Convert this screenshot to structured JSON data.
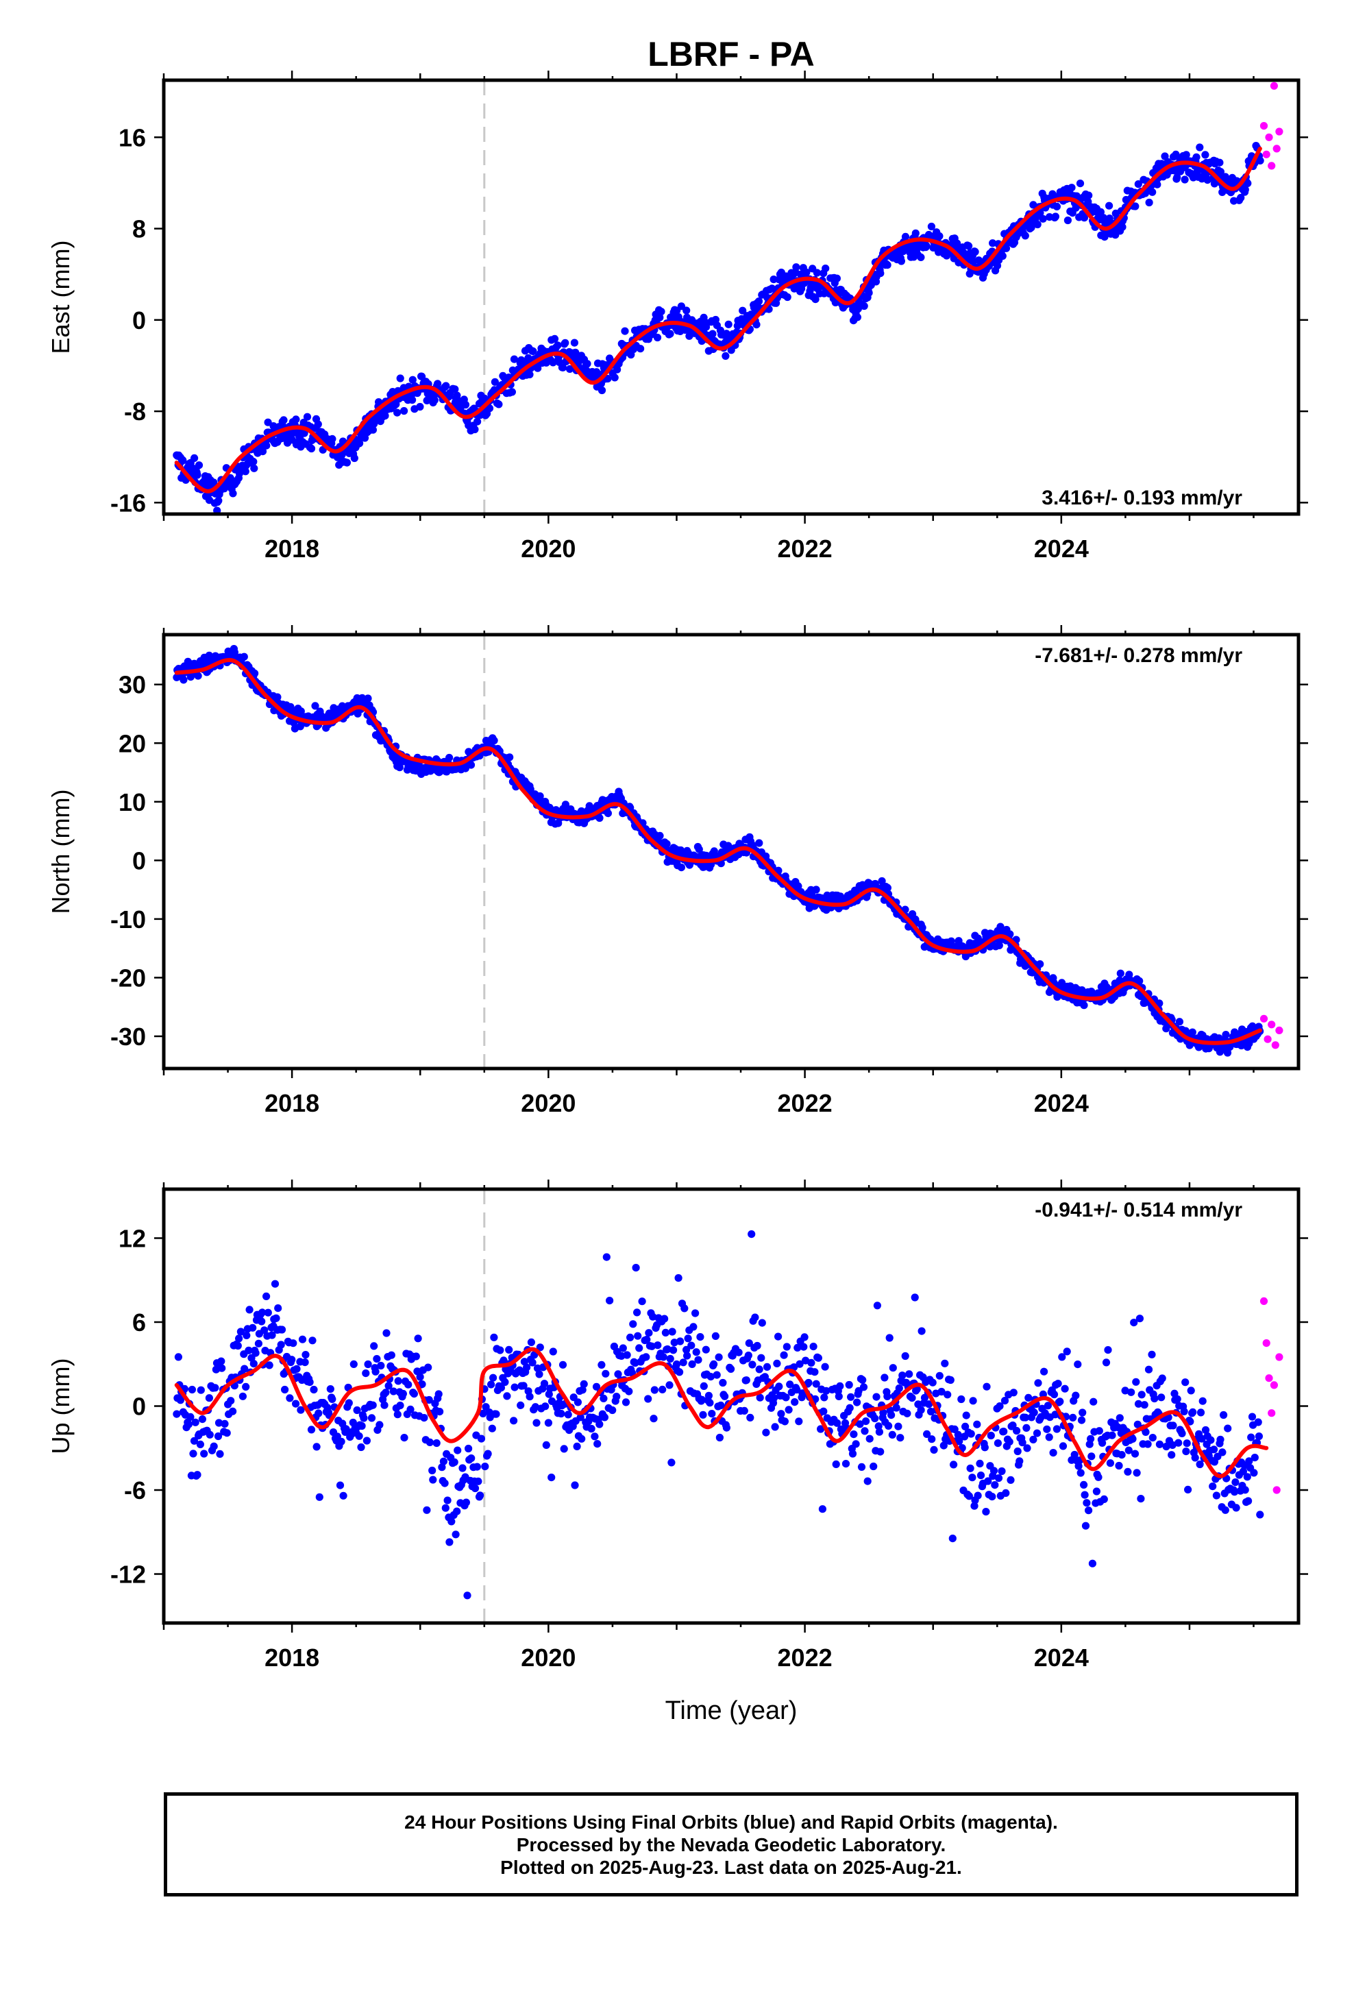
{
  "title": "LBRF - PA",
  "xlabel": "Time (year)",
  "caption": {
    "line1": "24 Hour Positions Using Final Orbits (blue) and Rapid Orbits (magenta).",
    "line2": "Processed by the Nevada Geodetic Laboratory.",
    "line3": "Plotted on 2025-Aug-23. Last data on 2025-Aug-21."
  },
  "colors": {
    "final_orbits": "#0000ff",
    "rapid_orbits": "#ff00ff",
    "fit": "#ff0000",
    "event_line": "#c8c8c8"
  },
  "chart_data": [
    {
      "type": "scatter",
      "ylabel": "East (mm)",
      "xlim": [
        2017.0,
        2025.85
      ],
      "ylim": [
        -17,
        21
      ],
      "xticks": [
        2018,
        2020,
        2022,
        2024
      ],
      "yticks": [
        -16,
        -8,
        0,
        8,
        16
      ],
      "rate_text": "3.416+/- 0.193 mm/yr",
      "rate_position": "bottom-right",
      "event_line_x": 2019.5,
      "series": [
        {
          "role": "final_orbits",
          "x": [
            2017.1,
            2017.3,
            2017.4,
            2017.6,
            2017.8,
            2018.0,
            2018.2,
            2018.4,
            2018.6,
            2018.8,
            2019.0,
            2019.2,
            2019.4,
            2019.6,
            2019.8,
            2020.0,
            2020.2,
            2020.4,
            2020.6,
            2020.8,
            2021.0,
            2021.2,
            2021.4,
            2021.6,
            2021.8,
            2022.0,
            2022.2,
            2022.4,
            2022.6,
            2022.8,
            2023.0,
            2023.2,
            2023.4,
            2023.6,
            2023.8,
            2024.0,
            2024.2,
            2024.4,
            2024.6,
            2024.8,
            2025.0,
            2025.2,
            2025.4,
            2025.55
          ],
          "y": [
            -12.5,
            -14,
            -15.5,
            -13,
            -10.5,
            -9.5,
            -10,
            -12,
            -9,
            -7,
            -6,
            -6.5,
            -8.5,
            -6.5,
            -4,
            -3,
            -3.5,
            -5.5,
            -2.5,
            -0.5,
            0,
            -1,
            -2,
            0.5,
            3,
            3.5,
            3,
            1,
            5,
            6.5,
            7,
            6,
            4.5,
            7,
            9.5,
            10.5,
            10,
            8,
            11,
            13,
            14,
            13,
            11.5,
            15
          ]
        },
        {
          "role": "rapid_orbits",
          "x": [
            2025.58,
            2025.6,
            2025.62,
            2025.64,
            2025.66,
            2025.68,
            2025.7
          ],
          "y": [
            17,
            14.5,
            16,
            13.5,
            20.5,
            15,
            16.5
          ]
        },
        {
          "role": "fit",
          "x": [
            2017.1,
            2017.35,
            2017.6,
            2017.85,
            2018.1,
            2018.35,
            2018.6,
            2018.85,
            2019.1,
            2019.35,
            2019.6,
            2019.85,
            2020.1,
            2020.35,
            2020.6,
            2020.85,
            2021.1,
            2021.35,
            2021.6,
            2021.85,
            2022.1,
            2022.35,
            2022.6,
            2022.85,
            2023.1,
            2023.35,
            2023.6,
            2023.85,
            2024.1,
            2024.35,
            2024.6,
            2024.85,
            2025.1,
            2025.35,
            2025.55
          ],
          "y": [
            -12.5,
            -15,
            -12,
            -10,
            -9.5,
            -11.5,
            -8.5,
            -6.5,
            -6,
            -8.5,
            -6.5,
            -4,
            -3,
            -5.5,
            -2.5,
            -0.5,
            -0.5,
            -2.5,
            0,
            3,
            3.5,
            1.5,
            5.5,
            7,
            6.5,
            4.5,
            7.5,
            10,
            10.5,
            8,
            11,
            13.5,
            13.5,
            11.5,
            15
          ]
        }
      ]
    },
    {
      "type": "scatter",
      "ylabel": "North (mm)",
      "xlim": [
        2017.0,
        2025.85
      ],
      "ylim": [
        -35.5,
        38.5
      ],
      "xticks": [
        2018,
        2020,
        2022,
        2024
      ],
      "yticks": [
        -30,
        -20,
        -10,
        0,
        10,
        20,
        30
      ],
      "rate_text": "-7.681+/- 0.278 mm/yr",
      "rate_position": "top-right",
      "event_line_x": 2019.5,
      "series": [
        {
          "role": "final_orbits",
          "x": [
            2017.1,
            2017.3,
            2017.55,
            2017.8,
            2018.0,
            2018.3,
            2018.55,
            2018.8,
            2019.0,
            2019.3,
            2019.55,
            2019.8,
            2020.0,
            2020.3,
            2020.55,
            2020.8,
            2021.0,
            2021.3,
            2021.55,
            2021.8,
            2022.0,
            2022.3,
            2022.55,
            2022.8,
            2023.0,
            2023.3,
            2023.55,
            2023.8,
            2024.0,
            2024.3,
            2024.55,
            2024.8,
            2025.0,
            2025.3,
            2025.55
          ],
          "y": [
            32,
            33,
            35,
            28,
            24.5,
            24,
            27,
            18,
            16,
            16,
            20,
            13,
            8,
            7.5,
            10.5,
            4,
            0.5,
            0,
            3,
            -3,
            -6.5,
            -7,
            -4,
            -10,
            -14.5,
            -15,
            -12.5,
            -19,
            -22.5,
            -23.5,
            -20.5,
            -27,
            -30.5,
            -31,
            -29.5
          ]
        },
        {
          "role": "rapid_orbits",
          "x": [
            2025.58,
            2025.61,
            2025.64,
            2025.67,
            2025.7
          ],
          "y": [
            -27,
            -30.5,
            -28,
            -31.5,
            -29
          ]
        },
        {
          "role": "fit",
          "x": [
            2017.1,
            2017.3,
            2017.55,
            2017.8,
            2018.0,
            2018.3,
            2018.55,
            2018.8,
            2019.0,
            2019.3,
            2019.55,
            2019.8,
            2020.0,
            2020.3,
            2020.55,
            2020.8,
            2021.0,
            2021.3,
            2021.55,
            2021.8,
            2022.0,
            2022.3,
            2022.55,
            2022.8,
            2023.0,
            2023.3,
            2023.55,
            2023.8,
            2024.0,
            2024.3,
            2024.55,
            2024.8,
            2025.0,
            2025.3,
            2025.55
          ],
          "y": [
            32,
            32.5,
            34,
            28,
            24.5,
            23.5,
            26,
            19,
            17,
            16.5,
            19,
            12,
            8,
            7.5,
            9.5,
            3.5,
            0.5,
            0,
            2,
            -3,
            -6.5,
            -7.5,
            -5,
            -10,
            -14.5,
            -15.5,
            -13,
            -18.5,
            -22.5,
            -23.5,
            -21,
            -26.5,
            -30.5,
            -31,
            -29
          ]
        }
      ]
    },
    {
      "type": "scatter",
      "ylabel": "Up (mm)",
      "xlim": [
        2017.0,
        2025.85
      ],
      "ylim": [
        -15.5,
        15.5
      ],
      "xticks": [
        2018,
        2020,
        2022,
        2024
      ],
      "yticks": [
        -12,
        -6,
        0,
        6,
        12
      ],
      "rate_text": "-0.941+/- 0.514 mm/yr",
      "rate_position": "top-right",
      "event_line_x": 2019.5,
      "series": [
        {
          "role": "final_orbits",
          "x": [
            2017.1,
            2017.25,
            2017.4,
            2017.55,
            2017.7,
            2017.85,
            2018.0,
            2018.2,
            2018.4,
            2018.6,
            2018.8,
            2019.0,
            2019.15,
            2019.3,
            2019.45,
            2019.6,
            2019.8,
            2020.0,
            2020.2,
            2020.4,
            2020.6,
            2020.8,
            2021.0,
            2021.2,
            2021.4,
            2021.6,
            2021.8,
            2022.0,
            2022.2,
            2022.4,
            2022.6,
            2022.8,
            2023.0,
            2023.2,
            2023.4,
            2023.6,
            2023.8,
            2024.0,
            2024.2,
            2024.4,
            2024.6,
            2024.8,
            2025.0,
            2025.2,
            2025.4,
            2025.55
          ],
          "y": [
            1,
            -2,
            0,
            2,
            5,
            6,
            3,
            0,
            -2,
            1,
            2,
            1,
            -3,
            -7,
            -4,
            2,
            3,
            1,
            -1,
            0,
            3,
            4,
            5,
            2,
            1,
            3,
            1,
            2,
            -1,
            -2,
            0,
            1,
            0,
            -2,
            -4,
            -2,
            -1,
            0,
            -4,
            -3,
            -1,
            0,
            -2,
            -4,
            -5,
            -3
          ]
        },
        {
          "role": "rapid_orbits",
          "x": [
            2025.58,
            2025.6,
            2025.62,
            2025.64,
            2025.66,
            2025.68,
            2025.7
          ],
          "y": [
            7.5,
            4.5,
            2,
            -0.5,
            1.5,
            -6,
            3.5
          ]
        },
        {
          "role": "fit",
          "x": [
            2017.1,
            2017.3,
            2017.5,
            2017.7,
            2017.9,
            2018.1,
            2018.25,
            2018.45,
            2018.65,
            2018.9,
            2019.1,
            2019.25,
            2019.45,
            2019.5,
            2019.7,
            2019.9,
            2020.1,
            2020.25,
            2020.45,
            2020.65,
            2020.9,
            2021.1,
            2021.25,
            2021.45,
            2021.65,
            2021.9,
            2022.1,
            2022.25,
            2022.45,
            2022.65,
            2022.9,
            2023.1,
            2023.25,
            2023.45,
            2023.65,
            2023.9,
            2024.1,
            2024.25,
            2024.45,
            2024.65,
            2024.9,
            2025.1,
            2025.25,
            2025.45,
            2025.6
          ],
          "y": [
            1.5,
            -0.5,
            1.5,
            2.5,
            3.5,
            0,
            -1.5,
            1,
            1.5,
            2.5,
            -1,
            -2.5,
            -0.5,
            2.5,
            3,
            4,
            1,
            -0.5,
            1.5,
            2,
            3,
            0,
            -1.5,
            0.5,
            1,
            2.5,
            -0.5,
            -2.5,
            -0.5,
            0,
            1.5,
            -1.5,
            -3.5,
            -1.5,
            -0.5,
            0.5,
            -2.5,
            -4.5,
            -2.5,
            -1.5,
            -0.5,
            -3.5,
            -5,
            -3,
            -3
          ]
        }
      ]
    }
  ]
}
